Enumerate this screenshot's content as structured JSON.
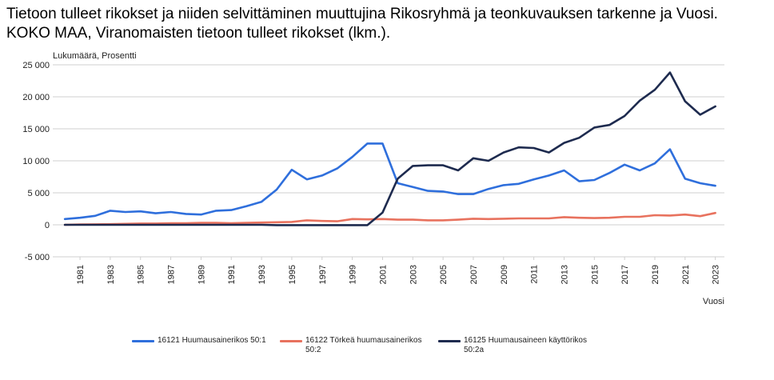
{
  "title": "Tietoon tulleet rikokset ja niiden selvittäminen muuttujina Rikosryhmä ja teonkuvauksen tarkenne ja Vuosi. KOKO MAA, Viranomaisten tietoon tulleet rikokset (lkm.).",
  "chart_data": {
    "type": "line",
    "title": "Tietoon tulleet rikokset ja niiden selvittäminen muuttujina Rikosryhmä ja teonkuvauksen tarkenne ja Vuosi. KOKO MAA, Viranomaisten tietoon tulleet rikokset (lkm.).",
    "ylabel": "Lukumäärä, Prosentti",
    "xlabel": "Vuosi",
    "ylim": [
      -5000,
      25000
    ],
    "y_ticks": [
      -5000,
      0,
      5000,
      10000,
      15000,
      20000,
      25000
    ],
    "y_tick_labels": [
      "-5 000",
      "0",
      "5 000",
      "10 000",
      "15 000",
      "20 000",
      "25 000"
    ],
    "x": [
      1980,
      1981,
      1982,
      1983,
      1984,
      1985,
      1986,
      1987,
      1988,
      1989,
      1990,
      1991,
      1992,
      1993,
      1994,
      1995,
      1996,
      1997,
      1998,
      1999,
      2000,
      2001,
      2002,
      2003,
      2004,
      2005,
      2006,
      2007,
      2008,
      2009,
      2010,
      2011,
      2012,
      2013,
      2014,
      2015,
      2016,
      2017,
      2018,
      2019,
      2020,
      2021,
      2022,
      2023
    ],
    "x_tick_labels": [
      "1981",
      "1983",
      "1985",
      "1987",
      "1989",
      "1991",
      "1993",
      "1995",
      "1997",
      "1999",
      "2001",
      "2003",
      "2005",
      "2007",
      "2009",
      "2011",
      "2013",
      "2015",
      "2017",
      "2019",
      "2021",
      "2023"
    ],
    "x_tick_years": [
      1981,
      1983,
      1985,
      1987,
      1989,
      1991,
      1993,
      1995,
      1997,
      1999,
      2001,
      2003,
      2005,
      2007,
      2009,
      2011,
      2013,
      2015,
      2017,
      2019,
      2021,
      2023
    ],
    "grid": true,
    "legend_position": "bottom",
    "series": [
      {
        "name": "16121 Huumausainerikos 50:1",
        "color": "#2f6fdc",
        "values": [
          900,
          1100,
          1400,
          2200,
          2000,
          2100,
          1800,
          2000,
          1700,
          1600,
          2200,
          2300,
          2900,
          3600,
          5500,
          8600,
          7100,
          7700,
          8800,
          10600,
          12700,
          12700,
          6500,
          5900,
          5300,
          5200,
          4800,
          4800,
          5600,
          6200,
          6400,
          7100,
          7700,
          8500,
          6800,
          7000,
          8100,
          9400,
          8500,
          9600,
          11800,
          7200,
          6500,
          6100
        ]
      },
      {
        "name": "16122 Törkeä huumausainerikos 50:2",
        "color": "#e8725e",
        "values": [
          0,
          50,
          80,
          100,
          150,
          200,
          200,
          250,
          250,
          300,
          300,
          250,
          300,
          350,
          400,
          450,
          700,
          600,
          550,
          900,
          850,
          900,
          800,
          800,
          700,
          700,
          800,
          950,
          900,
          950,
          1000,
          1000,
          1000,
          1200,
          1100,
          1050,
          1100,
          1250,
          1250,
          1500,
          1450,
          1600,
          1350,
          1850
        ]
      },
      {
        "name": "16125 Huumausaineen käyttörikos 50:2a",
        "color": "#1e2b4f",
        "values": [
          0,
          0,
          0,
          0,
          0,
          0,
          0,
          0,
          0,
          0,
          0,
          0,
          0,
          0,
          -50,
          -50,
          -50,
          -50,
          -50,
          -50,
          -50,
          1900,
          7200,
          9200,
          9300,
          9300,
          8500,
          10400,
          10000,
          11300,
          12100,
          12000,
          11300,
          12800,
          13600,
          15200,
          15600,
          17000,
          19400,
          21100,
          23800,
          19300,
          17200,
          18500
        ]
      }
    ]
  },
  "legend": {
    "items": [
      {
        "line1": "16121 Huumausainerikos 50:1",
        "line2": ""
      },
      {
        "line1": "16122 Törkeä huumausainerikos",
        "line2": "50:2"
      },
      {
        "line1": "16125 Huumausaineen käyttörikos",
        "line2": "50:2a"
      }
    ]
  }
}
